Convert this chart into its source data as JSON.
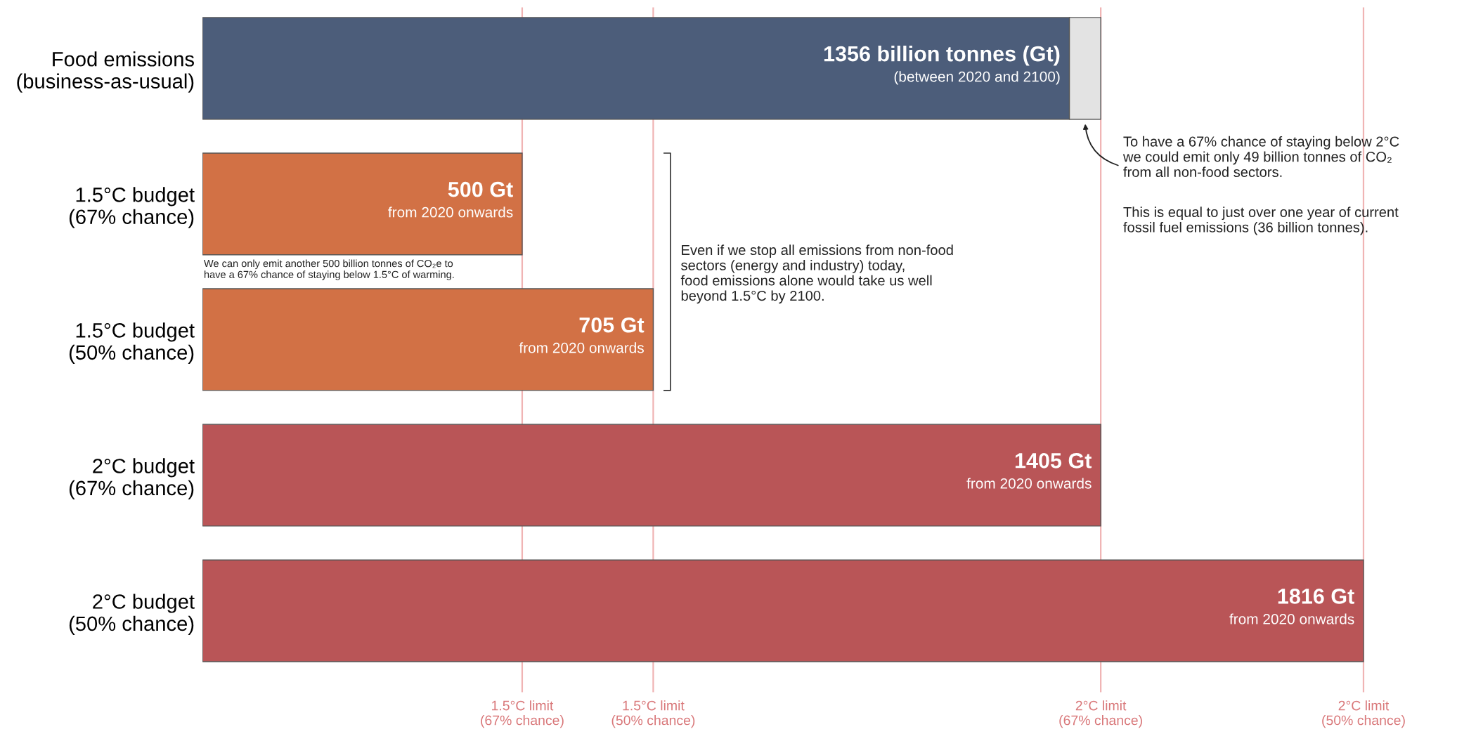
{
  "chart_data": {
    "type": "bar",
    "orientation": "horizontal",
    "stacked": true,
    "categories": [
      "Food emissions\n(business-as-usual)",
      "1.5°C budget\n(67% chance)",
      "1.5°C budget\n(50% chance)",
      "2°C budget\n(67% chance)",
      "2°C budget\n(50% chance)"
    ],
    "series": [
      {
        "colors": [
          "#4c5d7a",
          "#d27145",
          "#d27145",
          "#b95557",
          "#b95557"
        ],
        "values": [
          1356,
          500,
          705,
          1405,
          1816
        ],
        "value_labels": [
          "1356 billion tonnes (Gt)",
          "500 Gt",
          "705 Gt",
          "1405 Gt",
          "1816 Gt"
        ]
      },
      {
        "colors": [
          "#e3e3e3",
          null,
          null,
          null,
          null
        ],
        "values": [
          49,
          null,
          null,
          null,
          null
        ]
      }
    ],
    "tick_labels": "y",
    "grid": false,
    "ref_lines": [
      {
        "axis": "x",
        "value": 500,
        "label": "1.5°C limit\n(67% chance)",
        "color": "#f0b4b4"
      },
      {
        "axis": "x",
        "value": 705,
        "label": "1.5°C limit\n(50% chance)",
        "color": "#f0b4b4"
      },
      {
        "axis": "x",
        "value": 1405,
        "label": "2°C limit\n(67% chance)",
        "color": "#f0b4b4"
      },
      {
        "axis": "x",
        "value": 1816,
        "label": "2°C limit\n(50% chance)",
        "color": "#f0b4b4"
      }
    ],
    "annotations": [
      "To have a 67% chance of staying below 2°C\nwe could emit only 49 billion tonnes of CO₂\nfrom all non-food sectors.",
      "This is equal to just over one year of current\nfossil fuel emissions (36 billion tonnes).",
      "Even if we stop all emissions from non-food\nsectors (energy and industry) today,\nfood emissions alone would take us well\nbeyond 1.5°C by 2100.",
      "We can only emit another 500 billion tonnes of CO₂e to\nhave a 67% chance of staying below 1.5°C of warming.",
      "(between 2020 and 2100)",
      "from 2020 onwards",
      "from 2020 onwards",
      "from 2020 onwards",
      "from 2020 onwards"
    ]
  }
}
